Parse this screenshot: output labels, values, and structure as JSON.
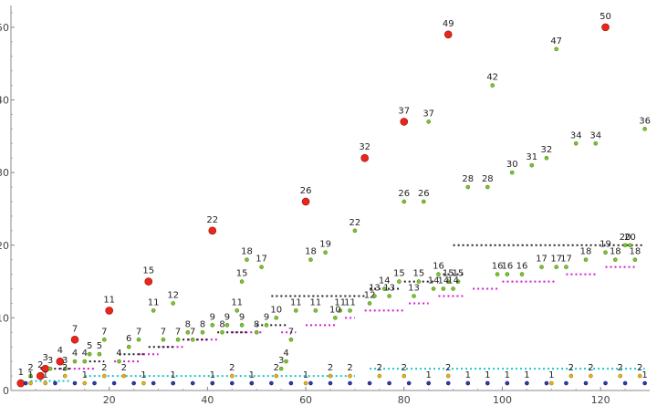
{
  "chart_data": {
    "type": "scatter",
    "title": "",
    "xlabel": "",
    "ylabel": "",
    "xlim": [
      0,
      130
    ],
    "ylim": [
      0,
      53
    ],
    "x_ticks": [
      20,
      40,
      60,
      80,
      100,
      120
    ],
    "y_ticks": [
      0,
      10,
      20,
      30,
      40,
      50
    ],
    "colors": {
      "red": "#e8261b",
      "green": "#7bc62d",
      "orange": "#e3b425",
      "blue": "#2f3aa8",
      "cyan_line": "#19c3cf",
      "magenta_line": "#d21ad2",
      "black_line": "#222222"
    },
    "series": [
      {
        "points": [
          [
            2,
            1
          ],
          [
            6,
            2
          ],
          [
            7,
            3
          ],
          [
            10,
            4
          ],
          [
            13,
            7
          ],
          [
            20,
            11
          ],
          [
            28,
            15
          ],
          [
            41,
            22
          ],
          [
            60,
            26
          ],
          [
            72,
            32
          ],
          [
            80,
            37
          ],
          [
            89,
            49
          ],
          [
            121,
            50
          ]
        ],
        "labels": [
          "1",
          "2",
          "3",
          "4",
          "7",
          "11",
          "15",
          "22",
          "26",
          "32",
          "37",
          "49",
          "50"
        ],
        "marker": "big-red"
      },
      {
        "points": [
          [
            4,
            2
          ],
          [
            8,
            3
          ],
          [
            11,
            3
          ],
          [
            13,
            4
          ],
          [
            15,
            4
          ],
          [
            16,
            5
          ],
          [
            18,
            5
          ],
          [
            19,
            7
          ],
          [
            22,
            4
          ],
          [
            24,
            6
          ],
          [
            26,
            7
          ],
          [
            29,
            11
          ],
          [
            31,
            7
          ],
          [
            33,
            12
          ],
          [
            34,
            7
          ],
          [
            36,
            8
          ],
          [
            37,
            7
          ],
          [
            39,
            8
          ],
          [
            41,
            9
          ],
          [
            43,
            8
          ],
          [
            44,
            9
          ],
          [
            46,
            11
          ],
          [
            47,
            9
          ],
          [
            48,
            18
          ],
          [
            50,
            8
          ],
          [
            51,
            17
          ],
          [
            52,
            9
          ],
          [
            54,
            10
          ],
          [
            55,
            3
          ],
          [
            56,
            4
          ],
          [
            57,
            7
          ],
          [
            58,
            11
          ],
          [
            61,
            18
          ],
          [
            62,
            11
          ],
          [
            64,
            19
          ],
          [
            66,
            10
          ],
          [
            67,
            11
          ],
          [
            69,
            11
          ],
          [
            70,
            22
          ],
          [
            73,
            12
          ],
          [
            74,
            13
          ],
          [
            76,
            14
          ],
          [
            77,
            13
          ],
          [
            79,
            15
          ],
          [
            80,
            26
          ],
          [
            82,
            13
          ],
          [
            83,
            15
          ],
          [
            84,
            26
          ],
          [
            85,
            37
          ],
          [
            86,
            14
          ],
          [
            87,
            16
          ],
          [
            88,
            14
          ],
          [
            89,
            15
          ],
          [
            90,
            14
          ],
          [
            91,
            15
          ],
          [
            93,
            28
          ],
          [
            97,
            28
          ],
          [
            98,
            42
          ],
          [
            99,
            16
          ],
          [
            101,
            16
          ],
          [
            102,
            30
          ],
          [
            104,
            16
          ],
          [
            106,
            31
          ],
          [
            108,
            17
          ],
          [
            109,
            32
          ],
          [
            111,
            17
          ],
          [
            113,
            17
          ],
          [
            115,
            34
          ],
          [
            117,
            18
          ],
          [
            119,
            34
          ],
          [
            121,
            19
          ],
          [
            123,
            18
          ],
          [
            125,
            20
          ],
          [
            127,
            18
          ],
          [
            129,
            36
          ],
          [
            126,
            20
          ],
          [
            111,
            47
          ],
          [
            47,
            15
          ]
        ],
        "labels": [
          "2",
          "3",
          "3",
          "4",
          "4",
          "5",
          "5",
          "7",
          "4",
          "6",
          "7",
          "11",
          "7",
          "12",
          "7",
          "8",
          "7",
          "8",
          "9",
          "8",
          "9",
          "11",
          "9",
          "18",
          "8",
          "17",
          "9",
          "10",
          "3",
          "4",
          "7",
          "11",
          "18",
          "11",
          "19",
          "10",
          "11",
          "11",
          "22",
          "12",
          "13",
          "14",
          "13",
          "15",
          "26",
          "13",
          "15",
          "26",
          "37",
          "14",
          "16",
          "14",
          "15",
          "14",
          "15",
          "28",
          "28",
          "42",
          "16",
          "16",
          "30",
          "16",
          "31",
          "17",
          "32",
          "17",
          "17",
          "34",
          "18",
          "34",
          "19",
          "18",
          "20",
          "18",
          "36",
          "20",
          "47",
          "15"
        ],
        "marker": "small-green"
      },
      {
        "points": [
          [
            4,
            1
          ],
          [
            7,
            1
          ],
          [
            11,
            2
          ],
          [
            15,
            1
          ],
          [
            19,
            2
          ],
          [
            23,
            2
          ],
          [
            27,
            1
          ],
          [
            33,
            1
          ],
          [
            41,
            1
          ],
          [
            45,
            2
          ],
          [
            49,
            1
          ],
          [
            54,
            2
          ],
          [
            60,
            1
          ],
          [
            65,
            2
          ],
          [
            69,
            2
          ],
          [
            75,
            2
          ],
          [
            80,
            2
          ],
          [
            85,
            1
          ],
          [
            89,
            2
          ],
          [
            93,
            1
          ],
          [
            97,
            1
          ],
          [
            101,
            1
          ],
          [
            105,
            1
          ],
          [
            110,
            1
          ],
          [
            114,
            2
          ],
          [
            118,
            2
          ],
          [
            124,
            2
          ],
          [
            128,
            2
          ]
        ],
        "labels": [
          "1",
          "1",
          "2",
          "1",
          "2",
          "2",
          "1",
          "1",
          "1",
          "2",
          "1",
          "2",
          "1",
          "2",
          "2",
          "2",
          "2",
          "1",
          "2",
          "1",
          "1",
          "1",
          "1",
          "1",
          "2",
          "2",
          "2",
          "2"
        ],
        "marker": "small-orange"
      },
      {
        "points": [
          [
            3,
            1
          ],
          [
            9,
            1
          ],
          [
            13,
            1
          ],
          [
            17,
            1
          ],
          [
            21,
            1
          ],
          [
            25,
            1
          ],
          [
            29,
            1
          ],
          [
            33,
            1
          ],
          [
            37,
            1
          ],
          [
            41,
            1
          ],
          [
            45,
            1
          ],
          [
            49,
            1
          ],
          [
            53,
            1
          ],
          [
            57,
            1
          ],
          [
            61,
            1
          ],
          [
            65,
            1
          ],
          [
            69,
            1
          ],
          [
            73,
            1
          ],
          [
            77,
            1
          ],
          [
            81,
            1
          ],
          [
            85,
            1
          ],
          [
            89,
            1
          ],
          [
            93,
            1
          ],
          [
            97,
            1
          ],
          [
            101,
            1
          ],
          [
            105,
            1
          ],
          [
            109,
            1
          ],
          [
            113,
            1
          ],
          [
            117,
            1
          ],
          [
            121,
            1
          ],
          [
            125,
            1
          ],
          [
            129,
            1
          ]
        ],
        "labels": [
          "",
          "",
          "",
          "",
          "",
          "",
          "",
          "",
          "",
          "",
          "",
          "",
          "",
          "",
          "",
          "",
          "",
          "",
          "",
          "",
          "",
          "",
          "",
          "",
          "",
          "",
          "",
          "",
          "",
          "",
          "",
          "1"
        ],
        "marker": "small-blue"
      }
    ],
    "reference_lines": [
      {
        "color": "cyan_line",
        "segments": [
          [
            [
              4,
              1.3
            ],
            [
              12,
              1.3
            ]
          ],
          [
            [
              15,
              2
            ],
            [
              70,
              2
            ]
          ],
          [
            [
              73,
              3
            ],
            [
              129,
              3
            ]
          ]
        ]
      },
      {
        "color": "magenta_line",
        "segments": [
          [
            [
              10,
              3
            ],
            [
              17,
              3
            ]
          ],
          [
            [
              21,
              4
            ],
            [
              26,
              4
            ]
          ],
          [
            [
              26,
              5
            ],
            [
              30,
              5
            ]
          ],
          [
            [
              30,
              6
            ],
            [
              35,
              6
            ]
          ],
          [
            [
              36,
              7
            ],
            [
              42,
              7
            ]
          ],
          [
            [
              45,
              8
            ],
            [
              51,
              8
            ]
          ],
          [
            [
              55,
              8
            ],
            [
              58,
              8
            ]
          ],
          [
            [
              60,
              9
            ],
            [
              66,
              9
            ]
          ],
          [
            [
              68,
              10
            ],
            [
              70,
              10
            ]
          ],
          [
            [
              72,
              11
            ],
            [
              80,
              11
            ]
          ],
          [
            [
              81,
              12
            ],
            [
              85,
              12
            ]
          ],
          [
            [
              87,
              13
            ],
            [
              92,
              13
            ]
          ],
          [
            [
              94,
              14
            ],
            [
              99,
              14
            ]
          ],
          [
            [
              100,
              15
            ],
            [
              111,
              15
            ]
          ],
          [
            [
              113,
              16
            ],
            [
              119,
              16
            ]
          ],
          [
            [
              121,
              17
            ],
            [
              127,
              17
            ]
          ]
        ]
      },
      {
        "color": "black_line",
        "segments": [
          [
            [
              6,
              3
            ],
            [
              12,
              3
            ]
          ],
          [
            [
              15,
              4
            ],
            [
              19,
              4
            ]
          ],
          [
            [
              22,
              5
            ],
            [
              27,
              5
            ]
          ],
          [
            [
              28,
              6
            ],
            [
              33,
              6
            ]
          ],
          [
            [
              34,
              7
            ],
            [
              40,
              7
            ]
          ],
          [
            [
              42,
              8
            ],
            [
              48,
              8
            ]
          ],
          [
            [
              50,
              9
            ],
            [
              56,
              9
            ]
          ],
          [
            [
              53,
              13
            ],
            [
              72,
              13
            ]
          ],
          [
            [
              73,
              14
            ],
            [
              79,
              14
            ]
          ],
          [
            [
              80,
              15
            ],
            [
              86,
              15
            ]
          ],
          [
            [
              87,
              16
            ],
            [
              92,
              16
            ]
          ],
          [
            [
              90,
              20
            ],
            [
              129,
              20
            ]
          ]
        ]
      }
    ]
  }
}
